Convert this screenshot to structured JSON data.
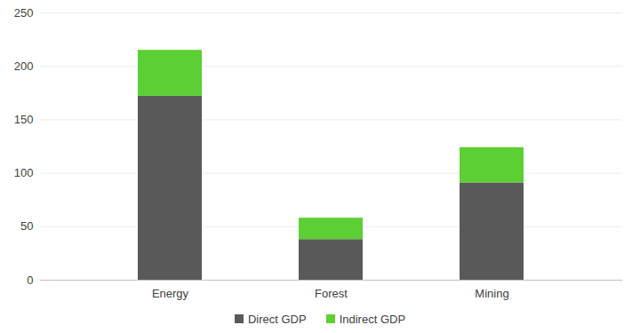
{
  "chart_data": {
    "type": "bar",
    "stacked": true,
    "categories": [
      "Energy",
      "Forest",
      "Mining"
    ],
    "series": [
      {
        "name": "Direct GDP",
        "color": "#595959",
        "values": [
          172,
          38,
          91
        ]
      },
      {
        "name": "Indirect GDP",
        "color": "#5ccf34",
        "values": [
          43,
          20,
          33
        ]
      }
    ],
    "ylim": [
      0,
      250
    ],
    "yticks": [
      0,
      50,
      100,
      150,
      200,
      250
    ],
    "grid": true,
    "legend": "bottom"
  }
}
